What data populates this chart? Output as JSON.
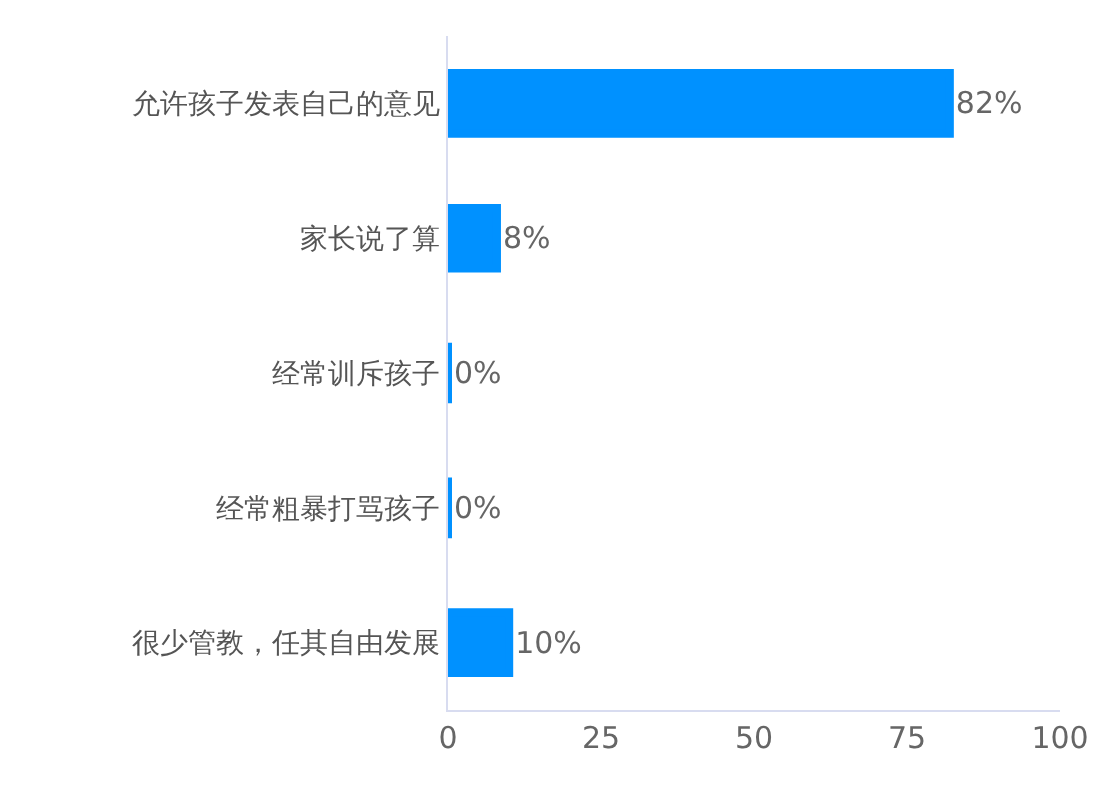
{
  "chart_data": {
    "type": "bar",
    "orientation": "horizontal",
    "categories": [
      "允许孩子发表自己的意见",
      "家长说了算",
      "经常训斥孩子",
      "经常粗暴打骂孩子",
      "很少管教，任其自由发展"
    ],
    "values": [
      82,
      8,
      0,
      0,
      10
    ],
    "value_labels": [
      "82%",
      "8%",
      "0%",
      "0%",
      "10%"
    ],
    "color": "#0091ff",
    "xlim": [
      0,
      100
    ],
    "xticks": [
      0,
      25,
      50,
      75,
      100
    ],
    "grid": false,
    "legend": false
  }
}
